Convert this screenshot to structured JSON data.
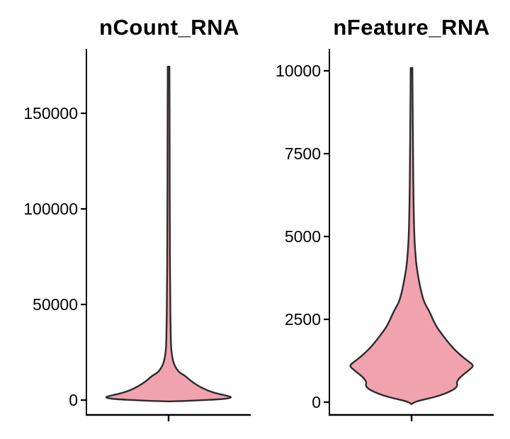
{
  "figure": {
    "background": "#FFFFFF",
    "text_color": "#000000",
    "axis_color": "#000000",
    "violin_fill": "#F0A3AF",
    "violin_stroke": "#2B2B2B"
  },
  "chart_data": [
    {
      "type": "violin",
      "title": "nCount_RNA",
      "x_categories": [
        ""
      ],
      "ylim": [
        -8200,
        183700
      ],
      "yticks": [
        0,
        50000,
        100000,
        150000
      ],
      "ytick_labels": [
        "0",
        "50000",
        "100000",
        "150000"
      ],
      "legend": "none",
      "grid": "off",
      "fill": "#F0A3AF",
      "stroke": "#2B2B2B",
      "max_value": 174400,
      "widest_at_value": 1400,
      "profile": [
        [
          174400,
          0.013
        ],
        [
          160000,
          0.015
        ],
        [
          140000,
          0.016
        ],
        [
          120000,
          0.017
        ],
        [
          100000,
          0.019
        ],
        [
          80000,
          0.021
        ],
        [
          60000,
          0.025
        ],
        [
          45000,
          0.028
        ],
        [
          35000,
          0.034
        ],
        [
          28000,
          0.039
        ],
        [
          24000,
          0.051
        ],
        [
          21000,
          0.067
        ],
        [
          18500,
          0.09
        ],
        [
          16500,
          0.124
        ],
        [
          14500,
          0.169
        ],
        [
          13000,
          0.247
        ],
        [
          11500,
          0.303
        ],
        [
          10000,
          0.355
        ],
        [
          9000,
          0.4
        ],
        [
          8500,
          0.42
        ],
        [
          7000,
          0.494
        ],
        [
          5500,
          0.584
        ],
        [
          4500,
          0.663
        ],
        [
          3600,
          0.753
        ],
        [
          2800,
          0.854
        ],
        [
          2000,
          0.955
        ],
        [
          1400,
          1.0
        ],
        [
          800,
          0.944
        ],
        [
          300,
          0.764
        ],
        [
          -100,
          0.506
        ],
        [
          -500,
          0.247
        ],
        [
          -700,
          0.0
        ]
      ]
    },
    {
      "type": "violin",
      "title": "nFeature_RNA",
      "x_categories": [
        ""
      ],
      "ylim": [
        -450,
        10600
      ],
      "yticks": [
        0,
        2500,
        5000,
        7500,
        10000
      ],
      "ytick_labels": [
        "0",
        "2500",
        "5000",
        "7500",
        "10000"
      ],
      "legend": "none",
      "grid": "off",
      "fill": "#F0A3AF",
      "stroke": "#2B2B2B",
      "max_value": 10085,
      "widest_at_value": 1100,
      "profile": [
        [
          10085,
          0.014
        ],
        [
          9500,
          0.016
        ],
        [
          8800,
          0.018
        ],
        [
          8000,
          0.022
        ],
        [
          7200,
          0.025
        ],
        [
          6400,
          0.03
        ],
        [
          5600,
          0.036
        ],
        [
          5000,
          0.045
        ],
        [
          4600,
          0.057
        ],
        [
          4200,
          0.074
        ],
        [
          3900,
          0.097
        ],
        [
          3600,
          0.125
        ],
        [
          3300,
          0.159
        ],
        [
          3000,
          0.205
        ],
        [
          2750,
          0.284
        ],
        [
          2500,
          0.341
        ],
        [
          2250,
          0.409
        ],
        [
          2050,
          0.489
        ],
        [
          1850,
          0.568
        ],
        [
          1650,
          0.659
        ],
        [
          1500,
          0.739
        ],
        [
          1350,
          0.83
        ],
        [
          1220,
          0.92
        ],
        [
          1100,
          1.0
        ],
        [
          980,
          0.932
        ],
        [
          850,
          0.841
        ],
        [
          720,
          0.761
        ],
        [
          600,
          0.722
        ],
        [
          500,
          0.739
        ],
        [
          400,
          0.693
        ],
        [
          300,
          0.591
        ],
        [
          200,
          0.455
        ],
        [
          120,
          0.295
        ],
        [
          60,
          0.148
        ],
        [
          0,
          0.045
        ],
        [
          -60,
          0.0
        ]
      ]
    }
  ]
}
